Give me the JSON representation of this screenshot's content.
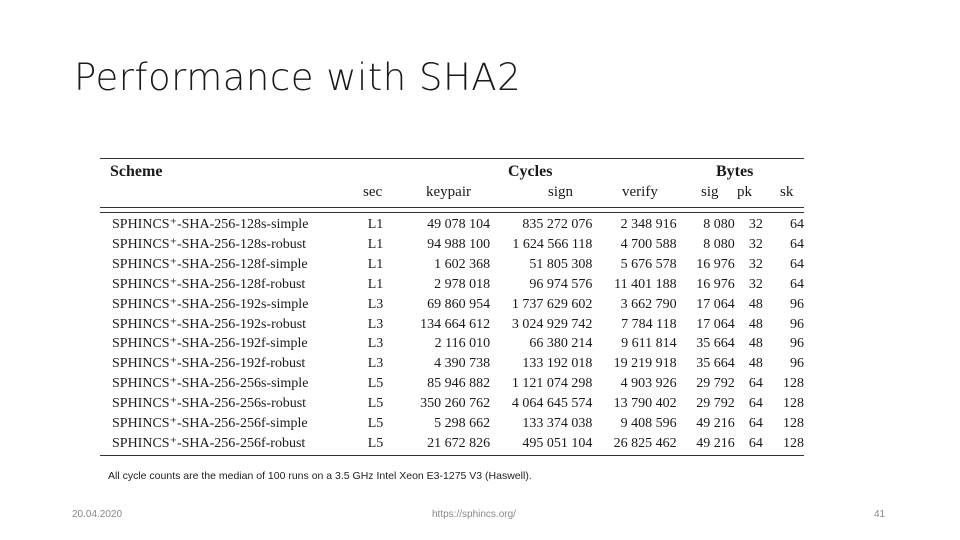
{
  "slide": {
    "title": "Performance with SHA2",
    "footnote": "All cycle counts are the median of 100 runs on a 3.5 GHz Intel Xeon E3-1275 V3 (Haswell).",
    "footer_date": "20.04.2020",
    "footer_url": "https://sphincs.org/",
    "page_number": "41"
  },
  "table": {
    "group_headers": {
      "scheme": "Scheme",
      "cycles": "Cycles",
      "bytes": "Bytes"
    },
    "columns": {
      "sec": "sec",
      "keypair": "keypair",
      "sign": "sign",
      "verify": "verify",
      "sig": "sig",
      "pk": "pk",
      "sk": "sk"
    },
    "rows": [
      {
        "scheme": "SPHINCS⁺-SHA-256-128s-simple",
        "sec": "L1",
        "keypair": "49 078 104",
        "sign": "835 272 076",
        "verify": "2 348 916",
        "sig": "8 080",
        "pk": "32",
        "sk": "64"
      },
      {
        "scheme": "SPHINCS⁺-SHA-256-128s-robust",
        "sec": "L1",
        "keypair": "94 988 100",
        "sign": "1 624 566 118",
        "verify": "4 700 588",
        "sig": "8 080",
        "pk": "32",
        "sk": "64"
      },
      {
        "scheme": "SPHINCS⁺-SHA-256-128f-simple",
        "sec": "L1",
        "keypair": "1 602 368",
        "sign": "51 805 308",
        "verify": "5 676 578",
        "sig": "16 976",
        "pk": "32",
        "sk": "64"
      },
      {
        "scheme": "SPHINCS⁺-SHA-256-128f-robust",
        "sec": "L1",
        "keypair": "2 978 018",
        "sign": "96 974 576",
        "verify": "11 401 188",
        "sig": "16 976",
        "pk": "32",
        "sk": "64"
      },
      {
        "scheme": "SPHINCS⁺-SHA-256-192s-simple",
        "sec": "L3",
        "keypair": "69 860 954",
        "sign": "1 737 629 602",
        "verify": "3 662 790",
        "sig": "17 064",
        "pk": "48",
        "sk": "96"
      },
      {
        "scheme": "SPHINCS⁺-SHA-256-192s-robust",
        "sec": "L3",
        "keypair": "134 664 612",
        "sign": "3 024 929 742",
        "verify": "7 784 118",
        "sig": "17 064",
        "pk": "48",
        "sk": "96"
      },
      {
        "scheme": "SPHINCS⁺-SHA-256-192f-simple",
        "sec": "L3",
        "keypair": "2 116 010",
        "sign": "66 380 214",
        "verify": "9 611 814",
        "sig": "35 664",
        "pk": "48",
        "sk": "96"
      },
      {
        "scheme": "SPHINCS⁺-SHA-256-192f-robust",
        "sec": "L3",
        "keypair": "4 390 738",
        "sign": "133 192 018",
        "verify": "19 219 918",
        "sig": "35 664",
        "pk": "48",
        "sk": "96"
      },
      {
        "scheme": "SPHINCS⁺-SHA-256-256s-simple",
        "sec": "L5",
        "keypair": "85 946 882",
        "sign": "1 121 074 298",
        "verify": "4 903 926",
        "sig": "29 792",
        "pk": "64",
        "sk": "128"
      },
      {
        "scheme": "SPHINCS⁺-SHA-256-256s-robust",
        "sec": "L5",
        "keypair": "350 260 762",
        "sign": "4 064 645 574",
        "verify": "13 790 402",
        "sig": "29 792",
        "pk": "64",
        "sk": "128"
      },
      {
        "scheme": "SPHINCS⁺-SHA-256-256f-simple",
        "sec": "L5",
        "keypair": "5 298 662",
        "sign": "133 374 038",
        "verify": "9 408 596",
        "sig": "49 216",
        "pk": "64",
        "sk": "128"
      },
      {
        "scheme": "SPHINCS⁺-SHA-256-256f-robust",
        "sec": "L5",
        "keypair": "21 672 826",
        "sign": "495 051 104",
        "verify": "26 825 462",
        "sig": "49 216",
        "pk": "64",
        "sk": "128"
      }
    ]
  }
}
